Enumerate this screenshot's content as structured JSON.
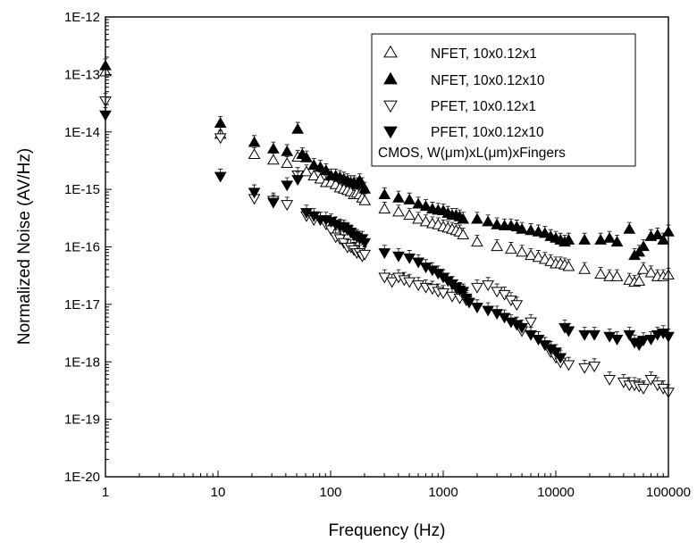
{
  "chart_data": {
    "type": "scatter",
    "title": "",
    "xlabel": "Frequency (Hz)",
    "ylabel": "Normalized Noise (AV/Hz)",
    "x_scale": "log",
    "y_scale": "log",
    "xlim": [
      1,
      100000
    ],
    "ylim": [
      1e-20,
      1e-12
    ],
    "x_ticks": [
      {
        "value": 1,
        "label": "1"
      },
      {
        "value": 10,
        "label": "10"
      },
      {
        "value": 100,
        "label": "100"
      },
      {
        "value": 1000,
        "label": "1000"
      },
      {
        "value": 10000,
        "label": "10000"
      },
      {
        "value": 100000,
        "label": "100000"
      }
    ],
    "y_ticks": [
      {
        "value": 1e-20,
        "label": "1E-20"
      },
      {
        "value": 1e-19,
        "label": "1E-19"
      },
      {
        "value": 1e-18,
        "label": "1E-18"
      },
      {
        "value": 1e-17,
        "label": "1E-17"
      },
      {
        "value": 1e-16,
        "label": "1E-16"
      },
      {
        "value": 1e-15,
        "label": "1E-15"
      },
      {
        "value": 1e-14,
        "label": "1E-14"
      },
      {
        "value": 1e-13,
        "label": "1E-13"
      },
      {
        "value": 1e-12,
        "label": "1E-12"
      }
    ],
    "grid": false,
    "legend_position": "top-right",
    "legend_note": "CMOS, W(μm)xL(μm)xFingers",
    "series": [
      {
        "name": "NFET, 10x0.12x1",
        "marker": "triangle-up-open",
        "x": [
          1,
          10.5,
          21,
          31,
          41,
          51,
          61,
          71,
          81,
          91,
          101,
          111,
          121,
          131,
          141,
          151,
          161,
          171,
          181,
          191,
          201,
          301,
          401,
          501,
          601,
          701,
          801,
          901,
          1001,
          1101,
          1201,
          1301,
          1401,
          1501,
          2001,
          3001,
          4001,
          5001,
          6001,
          7001,
          8001,
          9001,
          10001,
          11001,
          12001,
          13001,
          18000,
          25000,
          30000,
          35000,
          45000,
          50000,
          55000,
          60000,
          70000,
          80000,
          90000,
          100000
        ],
        "y": [
          1.1e-13,
          9e-15,
          4e-15,
          3.2e-15,
          2.8e-15,
          3.6e-15,
          2e-15,
          1.7e-15,
          1.5e-15,
          1.3e-15,
          1.3e-15,
          1.2e-15,
          1.05e-15,
          1e-15,
          9.5e-16,
          9e-16,
          8e-16,
          8.5e-16,
          8e-16,
          7e-16,
          6.3e-16,
          4.5e-16,
          4e-16,
          3.5e-16,
          3e-16,
          2.7e-16,
          2.5e-16,
          2.4e-16,
          2.2e-16,
          2.1e-16,
          2e-16,
          1.9e-16,
          1.8e-16,
          1.6e-16,
          1.2e-16,
          1e-16,
          9e-17,
          8e-17,
          7e-17,
          6.5e-17,
          6e-17,
          5.5e-17,
          5e-17,
          5e-17,
          4.8e-17,
          4.5e-17,
          4e-17,
          3.3e-17,
          3e-17,
          3e-17,
          2.6e-17,
          2.4e-17,
          2.5e-17,
          4e-17,
          3.5e-17,
          3e-17,
          3e-17,
          3.2e-17
        ]
      },
      {
        "name": "NFET, 10x0.12x10",
        "marker": "triangle-up-filled",
        "x": [
          1,
          10.5,
          21,
          31,
          41,
          51,
          56,
          61,
          71,
          81,
          91,
          101,
          111,
          121,
          131,
          141,
          151,
          161,
          171,
          181,
          191,
          201,
          301,
          401,
          501,
          601,
          701,
          801,
          901,
          1001,
          1101,
          1201,
          1301,
          1401,
          1501,
          2001,
          2501,
          3001,
          3501,
          4001,
          4501,
          5001,
          6001,
          7001,
          8001,
          9001,
          10001,
          11001,
          12001,
          13001,
          18000,
          25000,
          30000,
          35000,
          45000,
          50000,
          55000,
          60000,
          70000,
          80000,
          90000,
          100000
        ],
        "y": [
          1.4e-13,
          1.4e-14,
          6.5e-15,
          5e-15,
          4.5e-15,
          1.1e-14,
          4e-15,
          3.5e-15,
          2.6e-15,
          2.4e-15,
          2.1e-15,
          1.7e-15,
          1.7e-15,
          1.6e-15,
          1.5e-15,
          1.4e-15,
          1.3e-15,
          1.3e-15,
          1.2e-15,
          1.4e-15,
          1.2e-15,
          1e-15,
          8e-16,
          7e-16,
          6.5e-16,
          5.5e-16,
          5e-16,
          4.5e-16,
          4.3e-16,
          4.2e-16,
          3.8e-16,
          3.5e-16,
          3.5e-16,
          3.3e-16,
          3e-16,
          3e-16,
          2.7e-16,
          2.4e-16,
          2.3e-16,
          2.3e-16,
          2.2e-16,
          2e-16,
          1.9e-16,
          1.8e-16,
          1.7e-16,
          1.5e-16,
          1.4e-16,
          1.3e-16,
          1.2e-16,
          1.3e-16,
          1.3e-16,
          1.3e-16,
          1.4e-16,
          1.2e-16,
          2e-16,
          7e-17,
          8e-17,
          1e-16,
          1.5e-16,
          1.6e-16,
          1.3e-16,
          1.8e-16
        ]
      },
      {
        "name": "PFET, 10x0.12x1",
        "marker": "triangle-down-open",
        "x": [
          1,
          10.5,
          21,
          31,
          41,
          51,
          61,
          71,
          81,
          91,
          101,
          111,
          121,
          131,
          141,
          151,
          161,
          171,
          181,
          191,
          201,
          301,
          351,
          401,
          451,
          501,
          601,
          701,
          801,
          901,
          1001,
          1201,
          1401,
          1601,
          2001,
          2501,
          3001,
          3501,
          4001,
          4501,
          5001,
          6001,
          7001,
          8001,
          9001,
          10001,
          11001,
          13000,
          18000,
          22000,
          30000,
          40000,
          45000,
          50000,
          55000,
          60000,
          70000,
          80000,
          90000,
          100000
        ],
        "y": [
          3.5e-14,
          8e-15,
          7e-16,
          6.5e-16,
          5.5e-16,
          1.8e-15,
          3.5e-16,
          3e-16,
          3e-16,
          2.5e-16,
          2e-16,
          1.5e-16,
          1.4e-16,
          1.2e-16,
          1e-16,
          1e-16,
          9e-17,
          8e-17,
          8e-17,
          7e-17,
          7.5e-17,
          3e-17,
          2.5e-17,
          3e-17,
          2.7e-17,
          2.5e-17,
          2.2e-17,
          2e-17,
          1.9e-17,
          1.7e-17,
          1.6e-17,
          1.4e-17,
          1.3e-17,
          1.2e-17,
          2e-17,
          2.2e-17,
          1.7e-17,
          1.5e-17,
          1.2e-17,
          1e-17,
          3.5e-18,
          5e-18,
          2.5e-18,
          2e-18,
          1.5e-18,
          1.2e-18,
          1e-18,
          9e-19,
          8e-19,
          8.5e-19,
          5e-19,
          4.5e-19,
          4e-19,
          4e-19,
          3.8e-19,
          3.5e-19,
          5e-19,
          4e-19,
          3.5e-19,
          3e-19
        ]
      },
      {
        "name": "PFET, 10x0.12x10",
        "marker": "triangle-down-filled",
        "x": [
          1,
          10.5,
          21,
          31,
          41,
          51,
          61,
          71,
          81,
          91,
          101,
          111,
          121,
          131,
          141,
          151,
          161,
          171,
          181,
          191,
          201,
          301,
          401,
          501,
          601,
          701,
          801,
          901,
          1001,
          1101,
          1201,
          1301,
          1401,
          1501,
          1601,
          1701,
          2001,
          2501,
          3001,
          3501,
          4001,
          4501,
          5001,
          6001,
          7001,
          8001,
          9001,
          10001,
          11001,
          12001,
          13001,
          18000,
          22000,
          30000,
          35000,
          45000,
          50000,
          55000,
          60000,
          70000,
          80000,
          90000,
          100000
        ],
        "y": [
          2e-14,
          1.7e-15,
          9e-16,
          6e-16,
          1.2e-15,
          1.5e-15,
          4e-16,
          3.5e-16,
          3e-16,
          3e-16,
          2.8e-16,
          2.5e-16,
          2.3e-16,
          2.2e-16,
          2e-16,
          1.8e-16,
          1.6e-16,
          1.5e-16,
          1.4e-16,
          1.4e-16,
          1.2e-16,
          8e-17,
          7e-17,
          6.5e-17,
          5.5e-17,
          4.5e-17,
          4e-17,
          3.5e-17,
          3e-17,
          2.6e-17,
          2.3e-17,
          2e-17,
          1.8e-17,
          1.7e-17,
          1.3e-17,
          1.1e-17,
          9e-18,
          8e-18,
          7e-18,
          6e-18,
          5e-18,
          4.5e-18,
          4e-18,
          3e-18,
          2.5e-18,
          2e-18,
          1.7e-18,
          1.5e-18,
          1.2e-18,
          4e-18,
          3.5e-18,
          3e-18,
          3e-18,
          2.8e-18,
          2.5e-18,
          3e-18,
          2.2e-18,
          2e-18,
          2.4e-18,
          2.5e-18,
          3e-18,
          3.2e-18,
          2.8e-18
        ]
      }
    ]
  }
}
